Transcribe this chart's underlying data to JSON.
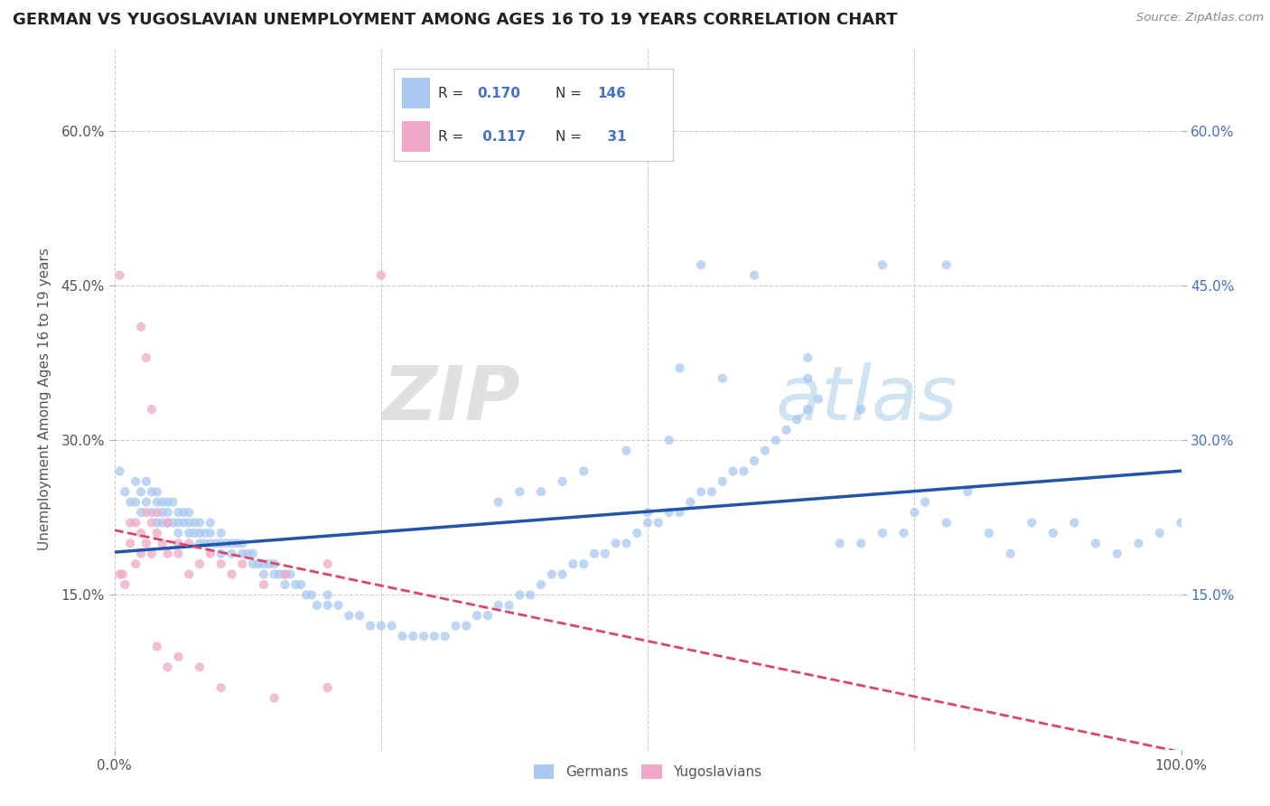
{
  "title": "GERMAN VS YUGOSLAVIAN UNEMPLOYMENT AMONG AGES 16 TO 19 YEARS CORRELATION CHART",
  "source": "Source: ZipAtlas.com",
  "ylabel": "Unemployment Among Ages 16 to 19 years",
  "xlim": [
    0.0,
    1.0
  ],
  "ylim": [
    0.0,
    0.68
  ],
  "yticks": [
    0.15,
    0.3,
    0.45,
    0.6
  ],
  "yticklabels": [
    "15.0%",
    "30.0%",
    "45.0%",
    "60.0%"
  ],
  "legend_r_german": "0.170",
  "legend_n_german": "146",
  "legend_r_yugo": "0.117",
  "legend_n_yugo": "31",
  "german_color": "#a8c8f0",
  "yugo_color": "#f0a8c8",
  "trend_german_color": "#2255aa",
  "trend_yugo_color": "#dd4466",
  "watermark_zip": "ZIP",
  "watermark_atlas": "atlas",
  "background_color": "#ffffff",
  "grid_color": "#cccccc",
  "dot_size": 55,
  "dot_alpha": 0.75,
  "german_scatter_x": [
    0.005,
    0.01,
    0.015,
    0.02,
    0.02,
    0.025,
    0.025,
    0.03,
    0.03,
    0.035,
    0.035,
    0.04,
    0.04,
    0.04,
    0.045,
    0.045,
    0.045,
    0.05,
    0.05,
    0.05,
    0.055,
    0.055,
    0.06,
    0.06,
    0.06,
    0.065,
    0.065,
    0.07,
    0.07,
    0.07,
    0.075,
    0.075,
    0.08,
    0.08,
    0.08,
    0.085,
    0.085,
    0.09,
    0.09,
    0.09,
    0.095,
    0.1,
    0.1,
    0.1,
    0.105,
    0.11,
    0.11,
    0.115,
    0.12,
    0.12,
    0.125,
    0.13,
    0.13,
    0.135,
    0.14,
    0.14,
    0.145,
    0.15,
    0.15,
    0.155,
    0.16,
    0.16,
    0.165,
    0.17,
    0.175,
    0.18,
    0.185,
    0.19,
    0.2,
    0.2,
    0.21,
    0.22,
    0.23,
    0.24,
    0.25,
    0.26,
    0.27,
    0.28,
    0.29,
    0.3,
    0.31,
    0.32,
    0.33,
    0.34,
    0.35,
    0.36,
    0.37,
    0.38,
    0.39,
    0.4,
    0.41,
    0.42,
    0.43,
    0.44,
    0.45,
    0.46,
    0.47,
    0.48,
    0.49,
    0.5,
    0.51,
    0.52,
    0.53,
    0.54,
    0.55,
    0.56,
    0.57,
    0.58,
    0.59,
    0.6,
    0.61,
    0.62,
    0.63,
    0.64,
    0.65,
    0.66,
    0.68,
    0.7,
    0.72,
    0.74,
    0.75,
    0.76,
    0.78,
    0.8,
    0.82,
    0.84,
    0.86,
    0.88,
    0.9,
    0.92,
    0.94,
    0.96,
    0.98,
    1.0,
    0.55,
    0.6,
    0.65,
    0.7,
    0.52,
    0.48,
    0.44,
    0.4,
    0.36,
    0.42,
    0.38,
    0.5
  ],
  "german_scatter_y": [
    0.27,
    0.25,
    0.24,
    0.26,
    0.24,
    0.25,
    0.23,
    0.24,
    0.26,
    0.23,
    0.25,
    0.24,
    0.22,
    0.25,
    0.23,
    0.24,
    0.22,
    0.23,
    0.22,
    0.24,
    0.22,
    0.24,
    0.22,
    0.23,
    0.21,
    0.22,
    0.23,
    0.22,
    0.21,
    0.23,
    0.21,
    0.22,
    0.21,
    0.2,
    0.22,
    0.21,
    0.2,
    0.21,
    0.2,
    0.22,
    0.2,
    0.21,
    0.2,
    0.19,
    0.2,
    0.2,
    0.19,
    0.2,
    0.19,
    0.2,
    0.19,
    0.18,
    0.19,
    0.18,
    0.18,
    0.17,
    0.18,
    0.17,
    0.18,
    0.17,
    0.17,
    0.16,
    0.17,
    0.16,
    0.16,
    0.15,
    0.15,
    0.14,
    0.14,
    0.15,
    0.14,
    0.13,
    0.13,
    0.12,
    0.12,
    0.12,
    0.11,
    0.11,
    0.11,
    0.11,
    0.11,
    0.12,
    0.12,
    0.13,
    0.13,
    0.14,
    0.14,
    0.15,
    0.15,
    0.16,
    0.17,
    0.17,
    0.18,
    0.18,
    0.19,
    0.19,
    0.2,
    0.2,
    0.21,
    0.22,
    0.22,
    0.23,
    0.23,
    0.24,
    0.25,
    0.25,
    0.26,
    0.27,
    0.27,
    0.28,
    0.29,
    0.3,
    0.31,
    0.32,
    0.33,
    0.34,
    0.2,
    0.2,
    0.21,
    0.21,
    0.23,
    0.24,
    0.22,
    0.25,
    0.21,
    0.19,
    0.22,
    0.21,
    0.22,
    0.2,
    0.19,
    0.2,
    0.21,
    0.22,
    0.47,
    0.46,
    0.36,
    0.33,
    0.3,
    0.29,
    0.27,
    0.25,
    0.24,
    0.26,
    0.25,
    0.23
  ],
  "yugo_scatter_x": [
    0.005,
    0.008,
    0.01,
    0.015,
    0.015,
    0.02,
    0.02,
    0.025,
    0.025,
    0.03,
    0.03,
    0.035,
    0.035,
    0.04,
    0.04,
    0.045,
    0.05,
    0.05,
    0.06,
    0.06,
    0.07,
    0.07,
    0.08,
    0.09,
    0.1,
    0.11,
    0.12,
    0.14,
    0.16,
    0.2,
    0.25
  ],
  "yugo_scatter_y": [
    0.17,
    0.17,
    0.16,
    0.22,
    0.2,
    0.22,
    0.18,
    0.21,
    0.19,
    0.23,
    0.2,
    0.22,
    0.19,
    0.21,
    0.23,
    0.2,
    0.22,
    0.19,
    0.2,
    0.19,
    0.17,
    0.2,
    0.18,
    0.19,
    0.18,
    0.17,
    0.18,
    0.16,
    0.17,
    0.18,
    0.46
  ],
  "yugo_extra_x": [
    0.005,
    0.025,
    0.03,
    0.035,
    0.04,
    0.05,
    0.06,
    0.08,
    0.1,
    0.15,
    0.2
  ],
  "yugo_extra_y": [
    0.46,
    0.41,
    0.38,
    0.33,
    0.1,
    0.08,
    0.09,
    0.08,
    0.06,
    0.05,
    0.06
  ]
}
